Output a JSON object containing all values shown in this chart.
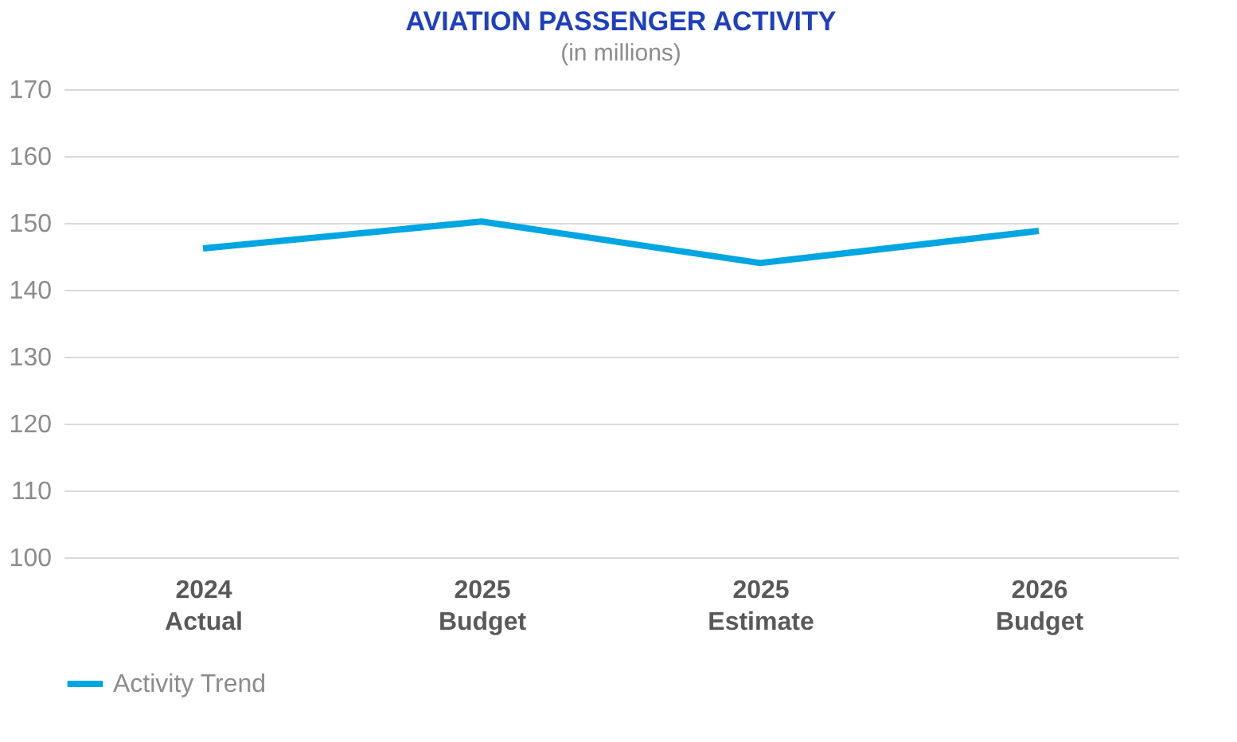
{
  "chart_data": {
    "type": "line",
    "title": "AVIATION PASSENGER ACTIVITY",
    "subtitle": "(in millions)",
    "categories": [
      "2024\nActual",
      "2025\nBudget",
      "2025\nEstimate",
      "2026\nBudget"
    ],
    "series": [
      {
        "name": "Activity Trend",
        "color": "#00a6e2",
        "values": [
          146.2,
          150.2,
          144.0,
          148.8
        ]
      }
    ],
    "ylim": [
      100,
      170
    ],
    "yticks": [
      100,
      110,
      120,
      130,
      140,
      150,
      160,
      170
    ],
    "grid": "y",
    "legend": "bottom",
    "marker": "none",
    "line_style": "solid"
  }
}
